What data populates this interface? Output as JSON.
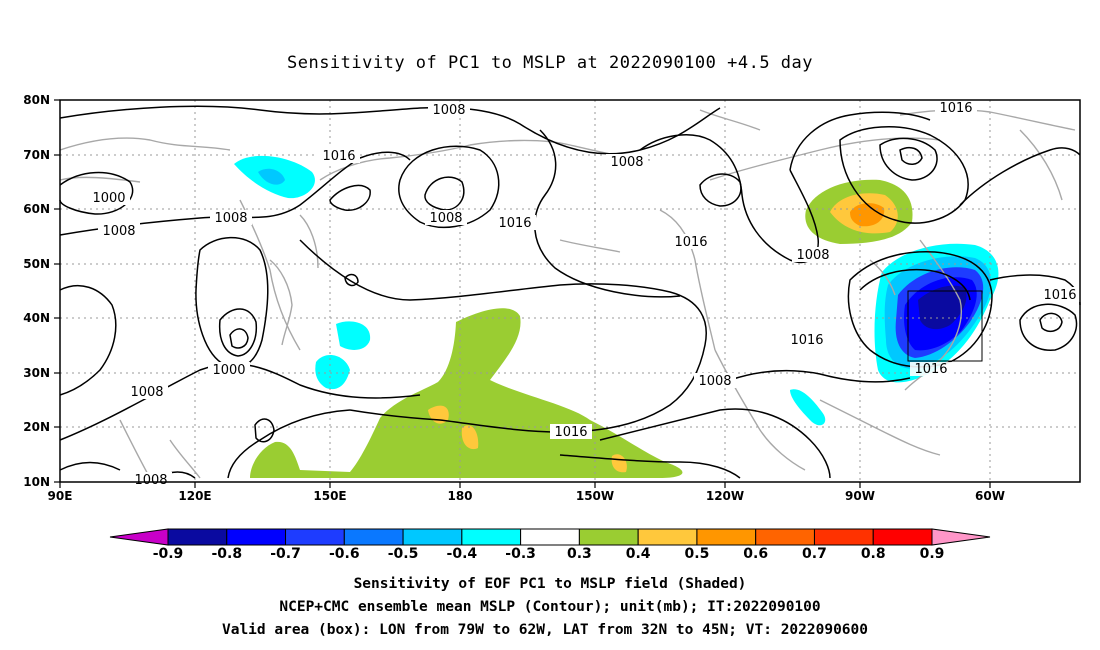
{
  "title": "Sensitivity of PC1 to MSLP at 2022090100 +4.5 day",
  "map": {
    "lat_labels": [
      "80N",
      "70N",
      "60N",
      "50N",
      "40N",
      "30N",
      "20N",
      "10N"
    ],
    "lon_labels": [
      "90E",
      "120E",
      "150E",
      "180",
      "150W",
      "120W",
      "90W",
      "60W"
    ],
    "contour_labels": [
      {
        "text": "1008"
      },
      {
        "text": "1016"
      },
      {
        "text": "1000"
      },
      {
        "text": "1008"
      },
      {
        "text": "1008"
      },
      {
        "text": "1008"
      },
      {
        "text": "1016"
      },
      {
        "text": "1008"
      },
      {
        "text": "1016"
      },
      {
        "text": "1008"
      },
      {
        "text": "1016"
      },
      {
        "text": "1016"
      },
      {
        "text": "1016"
      },
      {
        "text": "1000"
      },
      {
        "text": "1008"
      },
      {
        "text": "1008"
      },
      {
        "text": "1016"
      },
      {
        "text": "1008"
      }
    ],
    "grid": true,
    "valid_box": {
      "lon_min": -79,
      "lon_max": -62,
      "lat_min": 32,
      "lat_max": 45
    }
  },
  "colorbar": {
    "labels": [
      "-0.9",
      "-0.8",
      "-0.7",
      "-0.6",
      "-0.5",
      "-0.4",
      "-0.3",
      "0.3",
      "0.4",
      "0.5",
      "0.6",
      "0.7",
      "0.8",
      "0.9"
    ],
    "colors": [
      "#0a0aa0",
      "#0000ff",
      "#1e3cff",
      "#0a78ff",
      "#00c8ff",
      "#00ffff",
      "#ffffff",
      "#9acd32",
      "#ffc83c",
      "#ff9600",
      "#ff6400",
      "#ff3200",
      "#ff0000"
    ],
    "left_tip": "#c800c8",
    "right_tip": "#ff96c8"
  },
  "caption": {
    "line1": "Sensitivity of EOF PC1 to MSLP field (Shaded)",
    "line2": "NCEP+CMC ensemble mean MSLP (Contour); unit(mb); IT:2022090100",
    "line3": "Valid area (box): LON from 79W to 62W, LAT from 32N to 45N; VT: 2022090600"
  }
}
